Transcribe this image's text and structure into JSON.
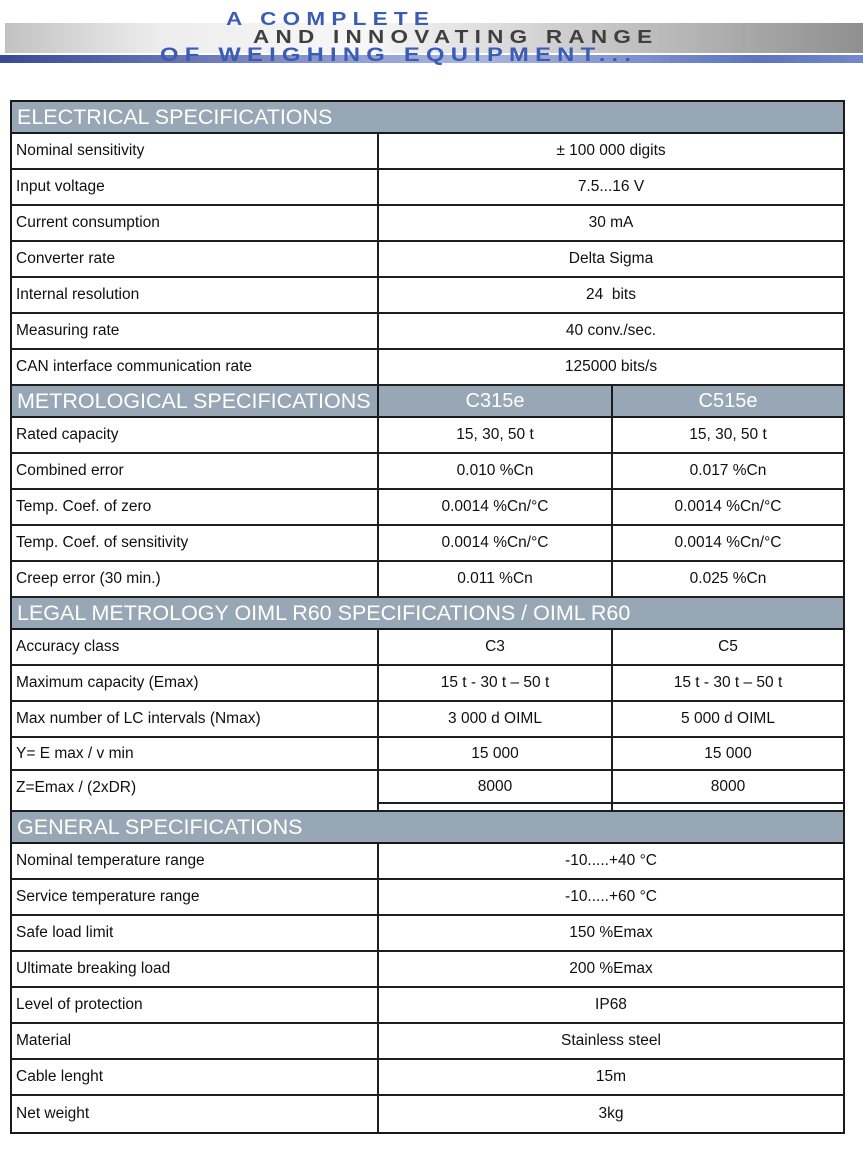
{
  "page_header": {
    "line1": "A COMPLETE",
    "line2": "AND INNOVATING RANGE",
    "line3": "OF WEIGHING EQUIPMENT..."
  },
  "colors": {
    "accent_blue": "#3b5cb4",
    "header_dark_gray": "#3f3f3f",
    "section_bar": "#98a7b5",
    "table_border": "#1a1a1a"
  },
  "table": {
    "sections": [
      {
        "id": "electrical",
        "title": "ELECTRICAL SPECIFICATIONS",
        "rows": [
          {
            "label": "Nominal sensitivity",
            "values": [
              "± 100 000 digits"
            ]
          },
          {
            "label": "Input voltage",
            "values": [
              "7.5...16 V"
            ]
          },
          {
            "label": "Current consumption",
            "values": [
              "30 mA"
            ]
          },
          {
            "label": "Converter rate",
            "values": [
              "Delta Sigma"
            ]
          },
          {
            "label": "Internal resolution",
            "values": [
              "24  bits"
            ]
          },
          {
            "label": "Measuring rate",
            "values": [
              "40 conv./sec."
            ]
          },
          {
            "label": "CAN interface communication rate",
            "values": [
              "125000 bits/s"
            ]
          }
        ]
      },
      {
        "id": "metrological",
        "title": "METROLOGICAL SPECIFICATIONS",
        "column_headers": [
          "C315e",
          "C515e"
        ],
        "rows": [
          {
            "label": "Rated capacity",
            "values": [
              "15, 30, 50 t",
              "15, 30, 50 t"
            ]
          },
          {
            "label": "Combined error",
            "values": [
              "0.010 %Cn",
              "0.017 %Cn"
            ]
          },
          {
            "label": "Temp. Coef. of zero",
            "values": [
              "0.0014 %Cn/°C",
              "0.0014 %Cn/°C"
            ]
          },
          {
            "label": "Temp. Coef. of sensitivity",
            "values": [
              "0.0014 %Cn/°C",
              "0.0014 %Cn/°C"
            ]
          },
          {
            "label": "Creep error (30 min.)",
            "values": [
              "0.011 %Cn",
              "0.025 %Cn"
            ]
          }
        ]
      },
      {
        "id": "legal-metrology",
        "title": "LEGAL METROLOGY OIML R60 SPECIFICATIONS / OIML R60",
        "rows": [
          {
            "label": "Accuracy class",
            "values": [
              "C3",
              "C5"
            ]
          },
          {
            "label": "Maximum capacity (Emax)",
            "values": [
              "15 t - 30 t – 50 t",
              "15 t - 30 t – 50 t"
            ]
          },
          {
            "label": "Max number of LC intervals (Nmax)",
            "values": [
              "3 000 d OIML",
              "5 000 d OIML"
            ]
          },
          {
            "label": "Y= E max / v min",
            "values": [
              "15 000",
              "15 000"
            ],
            "short": true
          },
          {
            "label": "Z=Emax / (2xDR)",
            "values": [
              "8000",
              "8000"
            ],
            "short": true,
            "label_no_underline": true
          }
        ],
        "spacer_after": true
      },
      {
        "id": "general",
        "title": "GENERAL SPECIFICATIONS",
        "rows": [
          {
            "label": "Nominal temperature range",
            "values": [
              "-10.....+40 °C"
            ]
          },
          {
            "label": "Service temperature range",
            "values": [
              "-10.....+60 °C"
            ]
          },
          {
            "label": "Safe load limit",
            "values": [
              "150 %Emax"
            ]
          },
          {
            "label": "Ultimate breaking load",
            "values": [
              "200 %Emax"
            ]
          },
          {
            "label": "Level of protection",
            "values": [
              "IP68"
            ]
          },
          {
            "label": "Material",
            "values": [
              "Stainless steel"
            ]
          },
          {
            "label": "Cable lenght",
            "values": [
              "15m"
            ]
          },
          {
            "label": "Net weight",
            "values": [
              "3kg"
            ]
          }
        ]
      }
    ]
  }
}
